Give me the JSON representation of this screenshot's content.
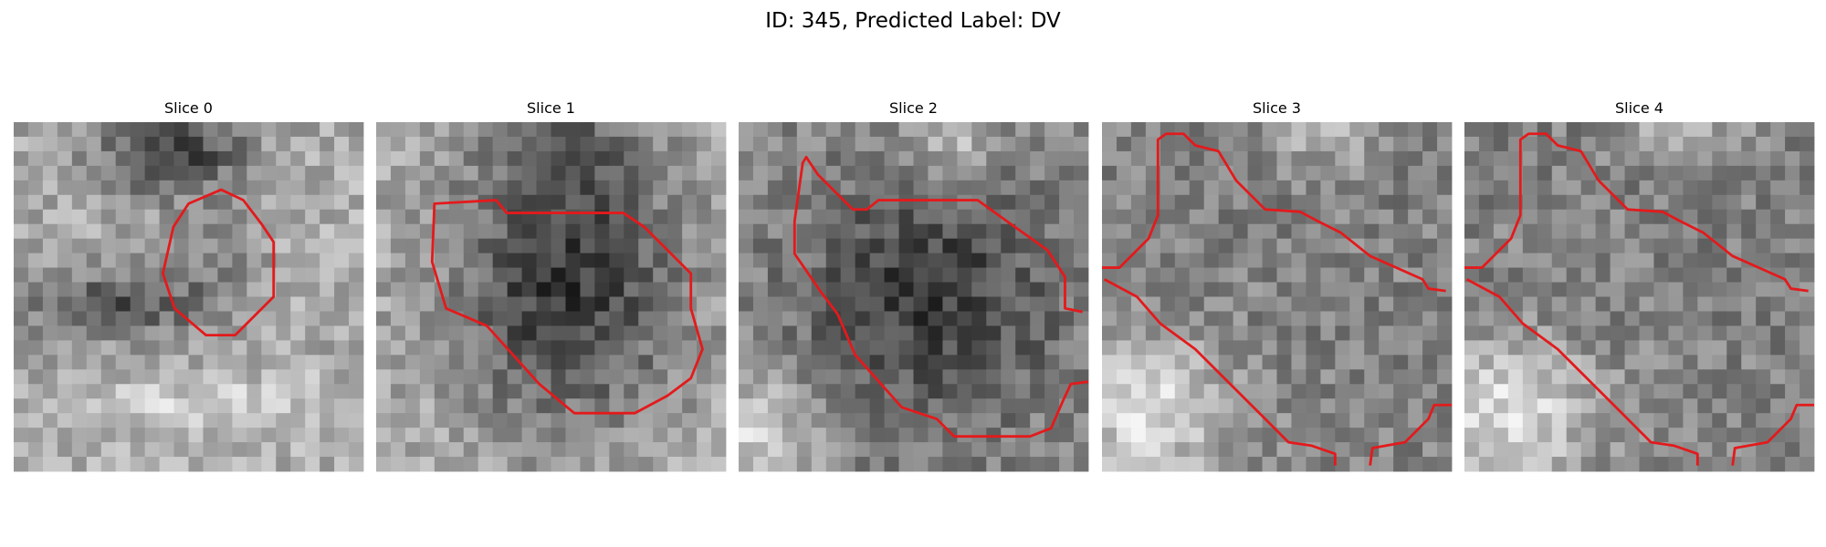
{
  "header": {
    "title": "ID: 345, Predicted Label: DV"
  },
  "panels": [
    {
      "title": "Slice 0"
    },
    {
      "title": "Slice 1"
    },
    {
      "title": "Slice 2"
    },
    {
      "title": "Slice 3"
    },
    {
      "title": "Slice 4"
    }
  ]
}
